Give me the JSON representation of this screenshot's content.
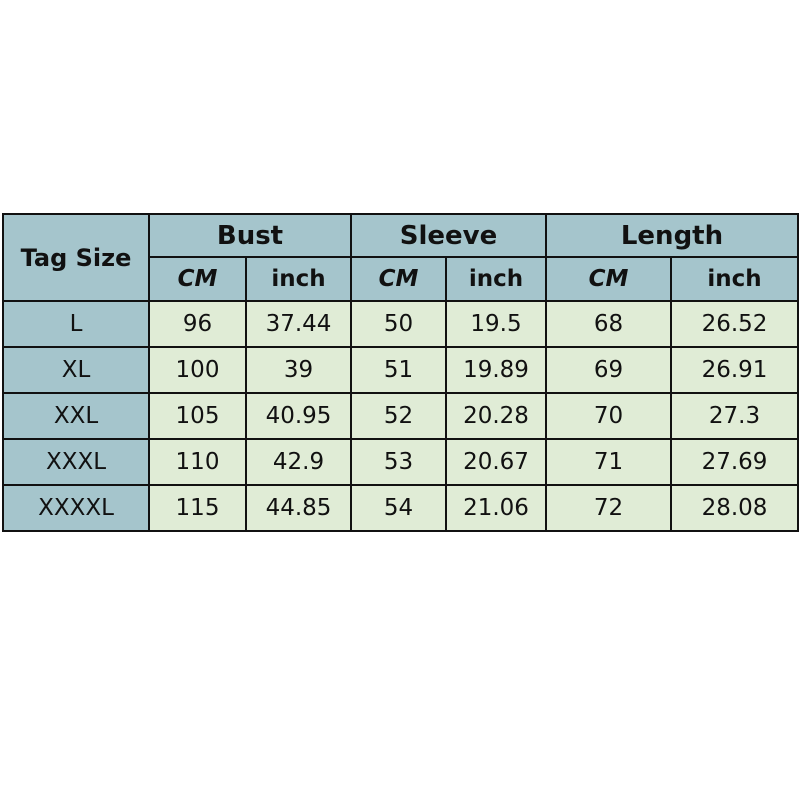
{
  "table": {
    "corner": "Tag Size",
    "groups": [
      "Bust",
      "Sleeve",
      "Length"
    ],
    "units": [
      "CM",
      "inch",
      "CM",
      "inch",
      "CM",
      "inch"
    ],
    "rows": [
      {
        "size": "L",
        "values": [
          "96",
          "37.44",
          "50",
          "19.5",
          "68",
          "26.52"
        ]
      },
      {
        "size": "XL",
        "values": [
          "100",
          "39",
          "51",
          "19.89",
          "69",
          "26.91"
        ]
      },
      {
        "size": "XXL",
        "values": [
          "105",
          "40.95",
          "52",
          "20.28",
          "70",
          "27.3"
        ]
      },
      {
        "size": "XXXL",
        "values": [
          "110",
          "42.9",
          "53",
          "20.67",
          "71",
          "27.69"
        ]
      },
      {
        "size": "XXXXL",
        "values": [
          "115",
          "44.85",
          "54",
          "21.06",
          "72",
          "28.08"
        ]
      }
    ]
  },
  "colors": {
    "header": "#a5c5cc",
    "cell": "#e0ecd6",
    "border": "#111111"
  }
}
